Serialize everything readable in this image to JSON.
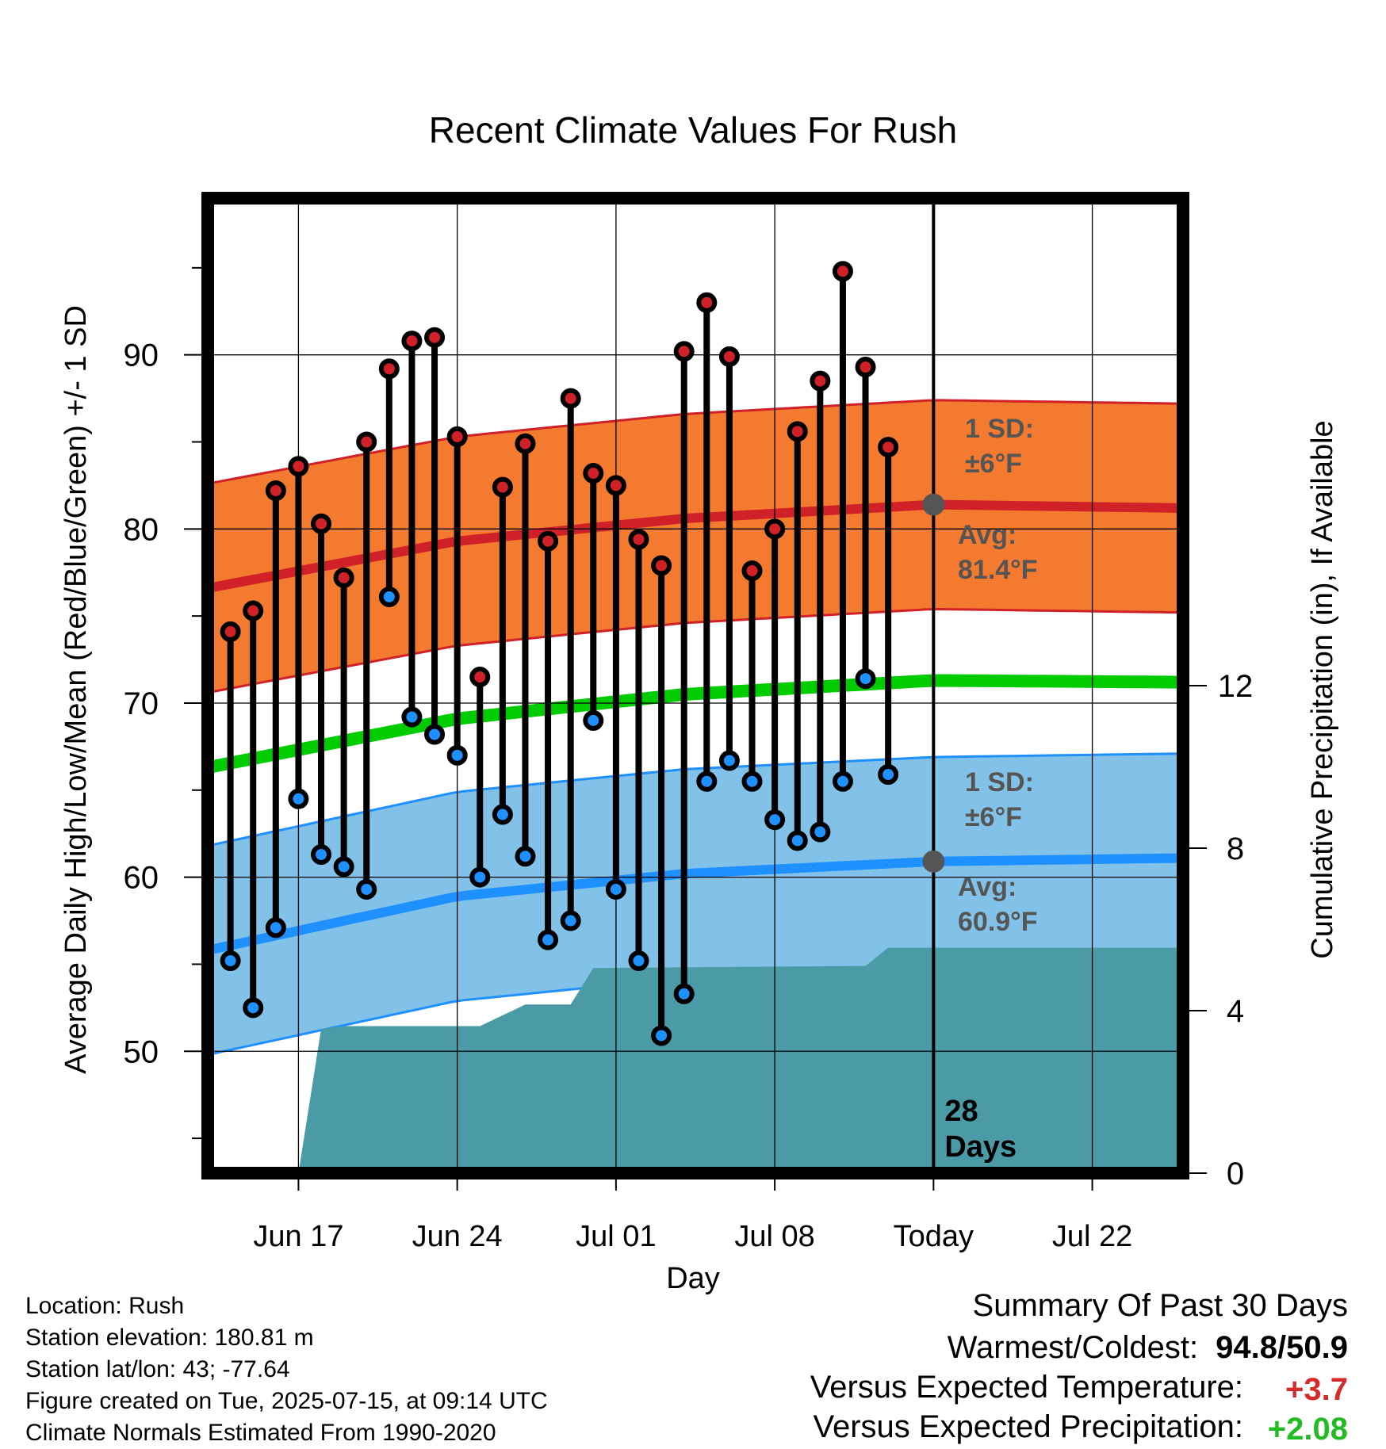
{
  "chart_data": {
    "type": "line",
    "title": "Recent Climate Values For Rush",
    "xlabel": "Day",
    "ylabel": "Average Daily High/Low/Mean (Red/Blue/Green) +/- 1 SD",
    "y2label": "Cumulative Precipitation (in), If Available",
    "xlim": [
      "2025-06-13",
      "2025-07-26"
    ],
    "ylim": [
      43,
      99
    ],
    "y2lim": [
      0,
      24
    ],
    "grid": true,
    "x_ticks": [
      {
        "date": "2025-06-17",
        "label": "Jun 17"
      },
      {
        "date": "2025-06-24",
        "label": "Jun 24"
      },
      {
        "date": "2025-07-01",
        "label": "Jul 01"
      },
      {
        "date": "2025-07-08",
        "label": "Jul 08"
      },
      {
        "date": "2025-07-15",
        "label": "Today"
      },
      {
        "date": "2025-07-22",
        "label": "Jul 22"
      }
    ],
    "y_ticks": [
      50,
      60,
      70,
      80,
      90
    ],
    "y2_ticks": [
      0,
      4,
      8,
      12
    ],
    "today": "2025-07-15",
    "period_label": "28\nDays",
    "daily_dates": [
      "2025-06-14",
      "2025-06-15",
      "2025-06-16",
      "2025-06-17",
      "2025-06-18",
      "2025-06-19",
      "2025-06-20",
      "2025-06-21",
      "2025-06-22",
      "2025-06-23",
      "2025-06-24",
      "2025-06-25",
      "2025-06-26",
      "2025-06-27",
      "2025-06-28",
      "2025-06-29",
      "2025-06-30",
      "2025-07-01",
      "2025-07-02",
      "2025-07-03",
      "2025-07-04",
      "2025-07-05",
      "2025-07-06",
      "2025-07-07",
      "2025-07-08",
      "2025-07-09",
      "2025-07-10",
      "2025-07-11",
      "2025-07-12",
      "2025-07-13",
      "2025-07-14"
    ],
    "daily_high": [
      74.1,
      75.3,
      82.2,
      83.6,
      80.3,
      77.2,
      85.0,
      89.2,
      90.8,
      91.0,
      85.3,
      71.5,
      82.4,
      84.9,
      79.3,
      87.5,
      83.2,
      82.5,
      79.4,
      77.9,
      90.2,
      93.0,
      89.9,
      77.6,
      80.0,
      85.6,
      88.5,
      94.8,
      89.3,
      84.7,
      null
    ],
    "daily_low": [
      55.2,
      52.5,
      57.1,
      64.5,
      61.3,
      60.6,
      59.3,
      76.1,
      69.2,
      68.2,
      67.0,
      60.0,
      63.6,
      61.2,
      56.4,
      57.5,
      69.0,
      59.3,
      55.2,
      50.9,
      53.3,
      65.5,
      66.7,
      65.5,
      63.3,
      62.1,
      62.6,
      65.5,
      71.4,
      65.9,
      null
    ],
    "normal_dates": [
      "2025-06-13",
      "2025-06-24",
      "2025-07-04",
      "2025-07-15",
      "2025-07-26"
    ],
    "normal_high": [
      76.6,
      79.3,
      80.6,
      81.4,
      81.2
    ],
    "normal_high_sd": 6,
    "normal_mean": [
      66.3,
      69.1,
      70.5,
      71.3,
      71.2
    ],
    "normal_low": [
      55.8,
      58.9,
      60.2,
      60.9,
      61.1
    ],
    "normal_low_sd": 6,
    "precip_dates": [
      "2025-06-17",
      "2025-06-18",
      "2025-06-19",
      "2025-06-25",
      "2025-06-27",
      "2025-06-29",
      "2025-06-30",
      "2025-07-12",
      "2025-07-13",
      "2025-07-26"
    ],
    "precip_cumulative": [
      0.0,
      3.55,
      3.62,
      3.62,
      4.15,
      4.15,
      5.05,
      5.1,
      5.55,
      5.55
    ],
    "annotations": {
      "high_sd_label": "1 SD:",
      "high_sd_value": "±6°F",
      "high_avg_label": "Avg:",
      "high_avg_value": "81.4°F",
      "low_sd_label": "1 SD:",
      "low_sd_value": "±6°F",
      "low_avg_label": "Avg:",
      "low_avg_value": "60.9°F"
    },
    "colors": {
      "high_band": "#f37a2e",
      "high_line": "#cf2127",
      "mean_line": "#00cc00",
      "low_band": "#82c2e8",
      "low_line": "#1e90ff",
      "precip": "#4a9ba6",
      "high_point": "#cf2127",
      "low_point": "#1e90ff",
      "annotation": "#555555"
    }
  },
  "footer": {
    "location": "Location: Rush",
    "elevation": "Station elevation: 180.81 m",
    "latlon": "Station lat/lon: 43; -77.64",
    "created": "Figure created on Tue, 2025-07-15, at 09:14 UTC",
    "normals": "Climate Normals Estimated From 1990-2020"
  },
  "summary": {
    "heading": "Summary Of Past 30 Days",
    "warm_cold_label": "Warmest/Coldest:",
    "warmest": "94.8",
    "separator": "/",
    "coldest": "50.9",
    "temp_label": "Versus Expected Temperature:",
    "temp_value": "+3.7",
    "temp_color": "#d62a2a",
    "precip_label": "Versus Expected Precipitation:",
    "precip_value": "+2.08",
    "precip_color": "#22bb22"
  }
}
